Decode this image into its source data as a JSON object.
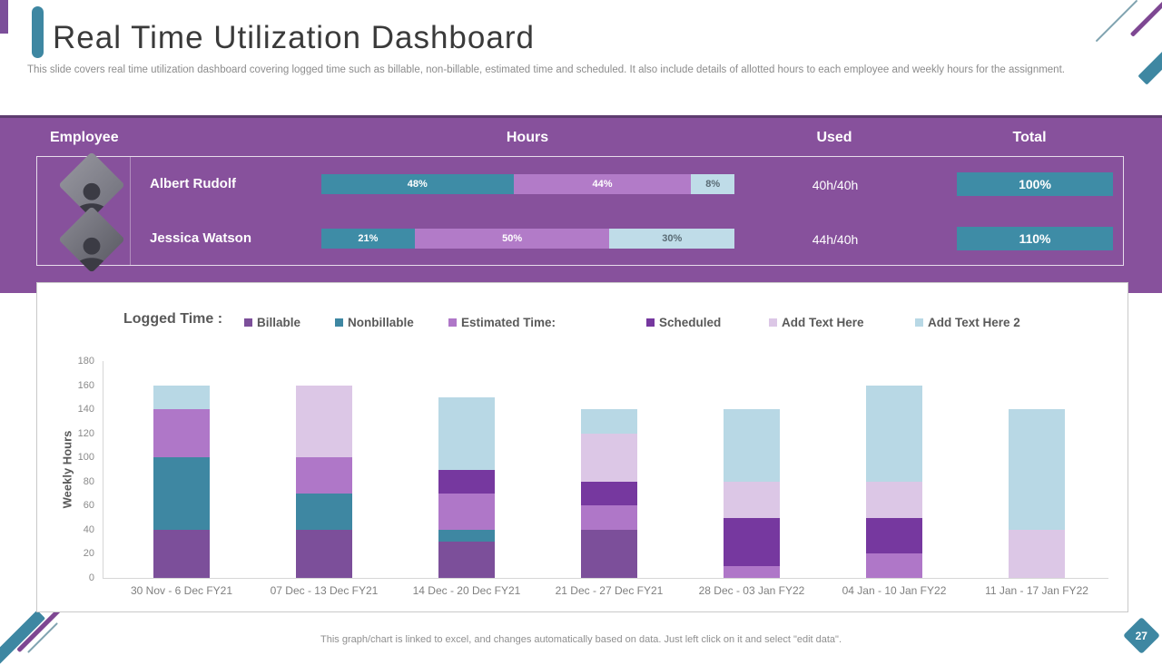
{
  "slide": {
    "title": "Real Time Utilization Dashboard",
    "subtitle": "This slide covers real time utilization dashboard covering logged time such as billable, non-billable, estimated time and scheduled. It also include details of allotted hours to each employee and weekly hours for the assignment.",
    "footer_note": "This graph/chart is linked to excel, and changes automatically based on data. Just left click on it and select \"edit data\".",
    "page_number": "27"
  },
  "theme": {
    "purple_band": "#87519c",
    "teal_accent": "#3e87a2",
    "chip_teal": "#3e8ca6",
    "title_gray": "#3a3a3a",
    "legend_gray": "#595959"
  },
  "table": {
    "headers": {
      "employee": "Employee",
      "hours": "Hours",
      "used": "Used",
      "total": "Total"
    },
    "rows": [
      {
        "name": "Albert Rudolf",
        "photo": "man-portrait",
        "segments": [
          {
            "label": "48%",
            "value": 48,
            "color": "#3e8ca6",
            "text_color": "#ffffff"
          },
          {
            "label": "44%",
            "value": 44,
            "color": "#b27bc8",
            "text_color": "#ffffff"
          },
          {
            "label": "8%",
            "value": 8,
            "color": "#bfdce8",
            "text_color": "#5a6b74"
          }
        ],
        "used": "40h/40h",
        "total": "100%"
      },
      {
        "name": "Jessica Watson",
        "photo": "woman-portrait",
        "segments": [
          {
            "label": "21%",
            "value": 21,
            "color": "#3e8ca6",
            "text_color": "#ffffff"
          },
          {
            "label": "50%",
            "value": 50,
            "color": "#b27bc8",
            "text_color": "#ffffff"
          },
          {
            "label": "30%",
            "value": 30,
            "color": "#bfdce8",
            "text_color": "#5a6b74"
          }
        ],
        "used": "44h/40h",
        "total": "110%"
      }
    ]
  },
  "chart_data": {
    "type": "bar",
    "stacked": true,
    "title": "Logged Time :",
    "ylabel": "Weekly Hours",
    "ylim": [
      0,
      180
    ],
    "ytick_step": 20,
    "grid": false,
    "legend_position": "top",
    "categories": [
      "30 Nov - 6 Dec FY21",
      "07 Dec - 13 Dec FY21",
      "14 Dec - 20 Dec FY21",
      "21 Dec - 27 Dec FY21",
      "28 Dec - 03 Jan FY22",
      "04 Jan - 10  Jan FY22",
      "11 Jan - 17 Jan FY22"
    ],
    "series": [
      {
        "name": "Billable",
        "color": "#7c4f9a",
        "values": [
          40,
          40,
          30,
          40,
          0,
          0,
          0
        ]
      },
      {
        "name": "Nonbillable",
        "color": "#3e87a2",
        "values": [
          60,
          30,
          10,
          0,
          0,
          0,
          0
        ]
      },
      {
        "name": "Estimated Time:",
        "color": "#af77c8",
        "values": [
          40,
          30,
          30,
          20,
          10,
          20,
          0
        ]
      },
      {
        "name": "Scheduled",
        "color": "#76389f",
        "values": [
          0,
          0,
          20,
          20,
          40,
          30,
          0
        ]
      },
      {
        "name": "Add Text Here",
        "color": "#dcc7e6",
        "values": [
          0,
          60,
          0,
          40,
          30,
          30,
          40
        ]
      },
      {
        "name": "Add Text Here 2",
        "color": "#b8d8e5",
        "values": [
          20,
          0,
          60,
          20,
          60,
          80,
          100
        ]
      }
    ]
  }
}
